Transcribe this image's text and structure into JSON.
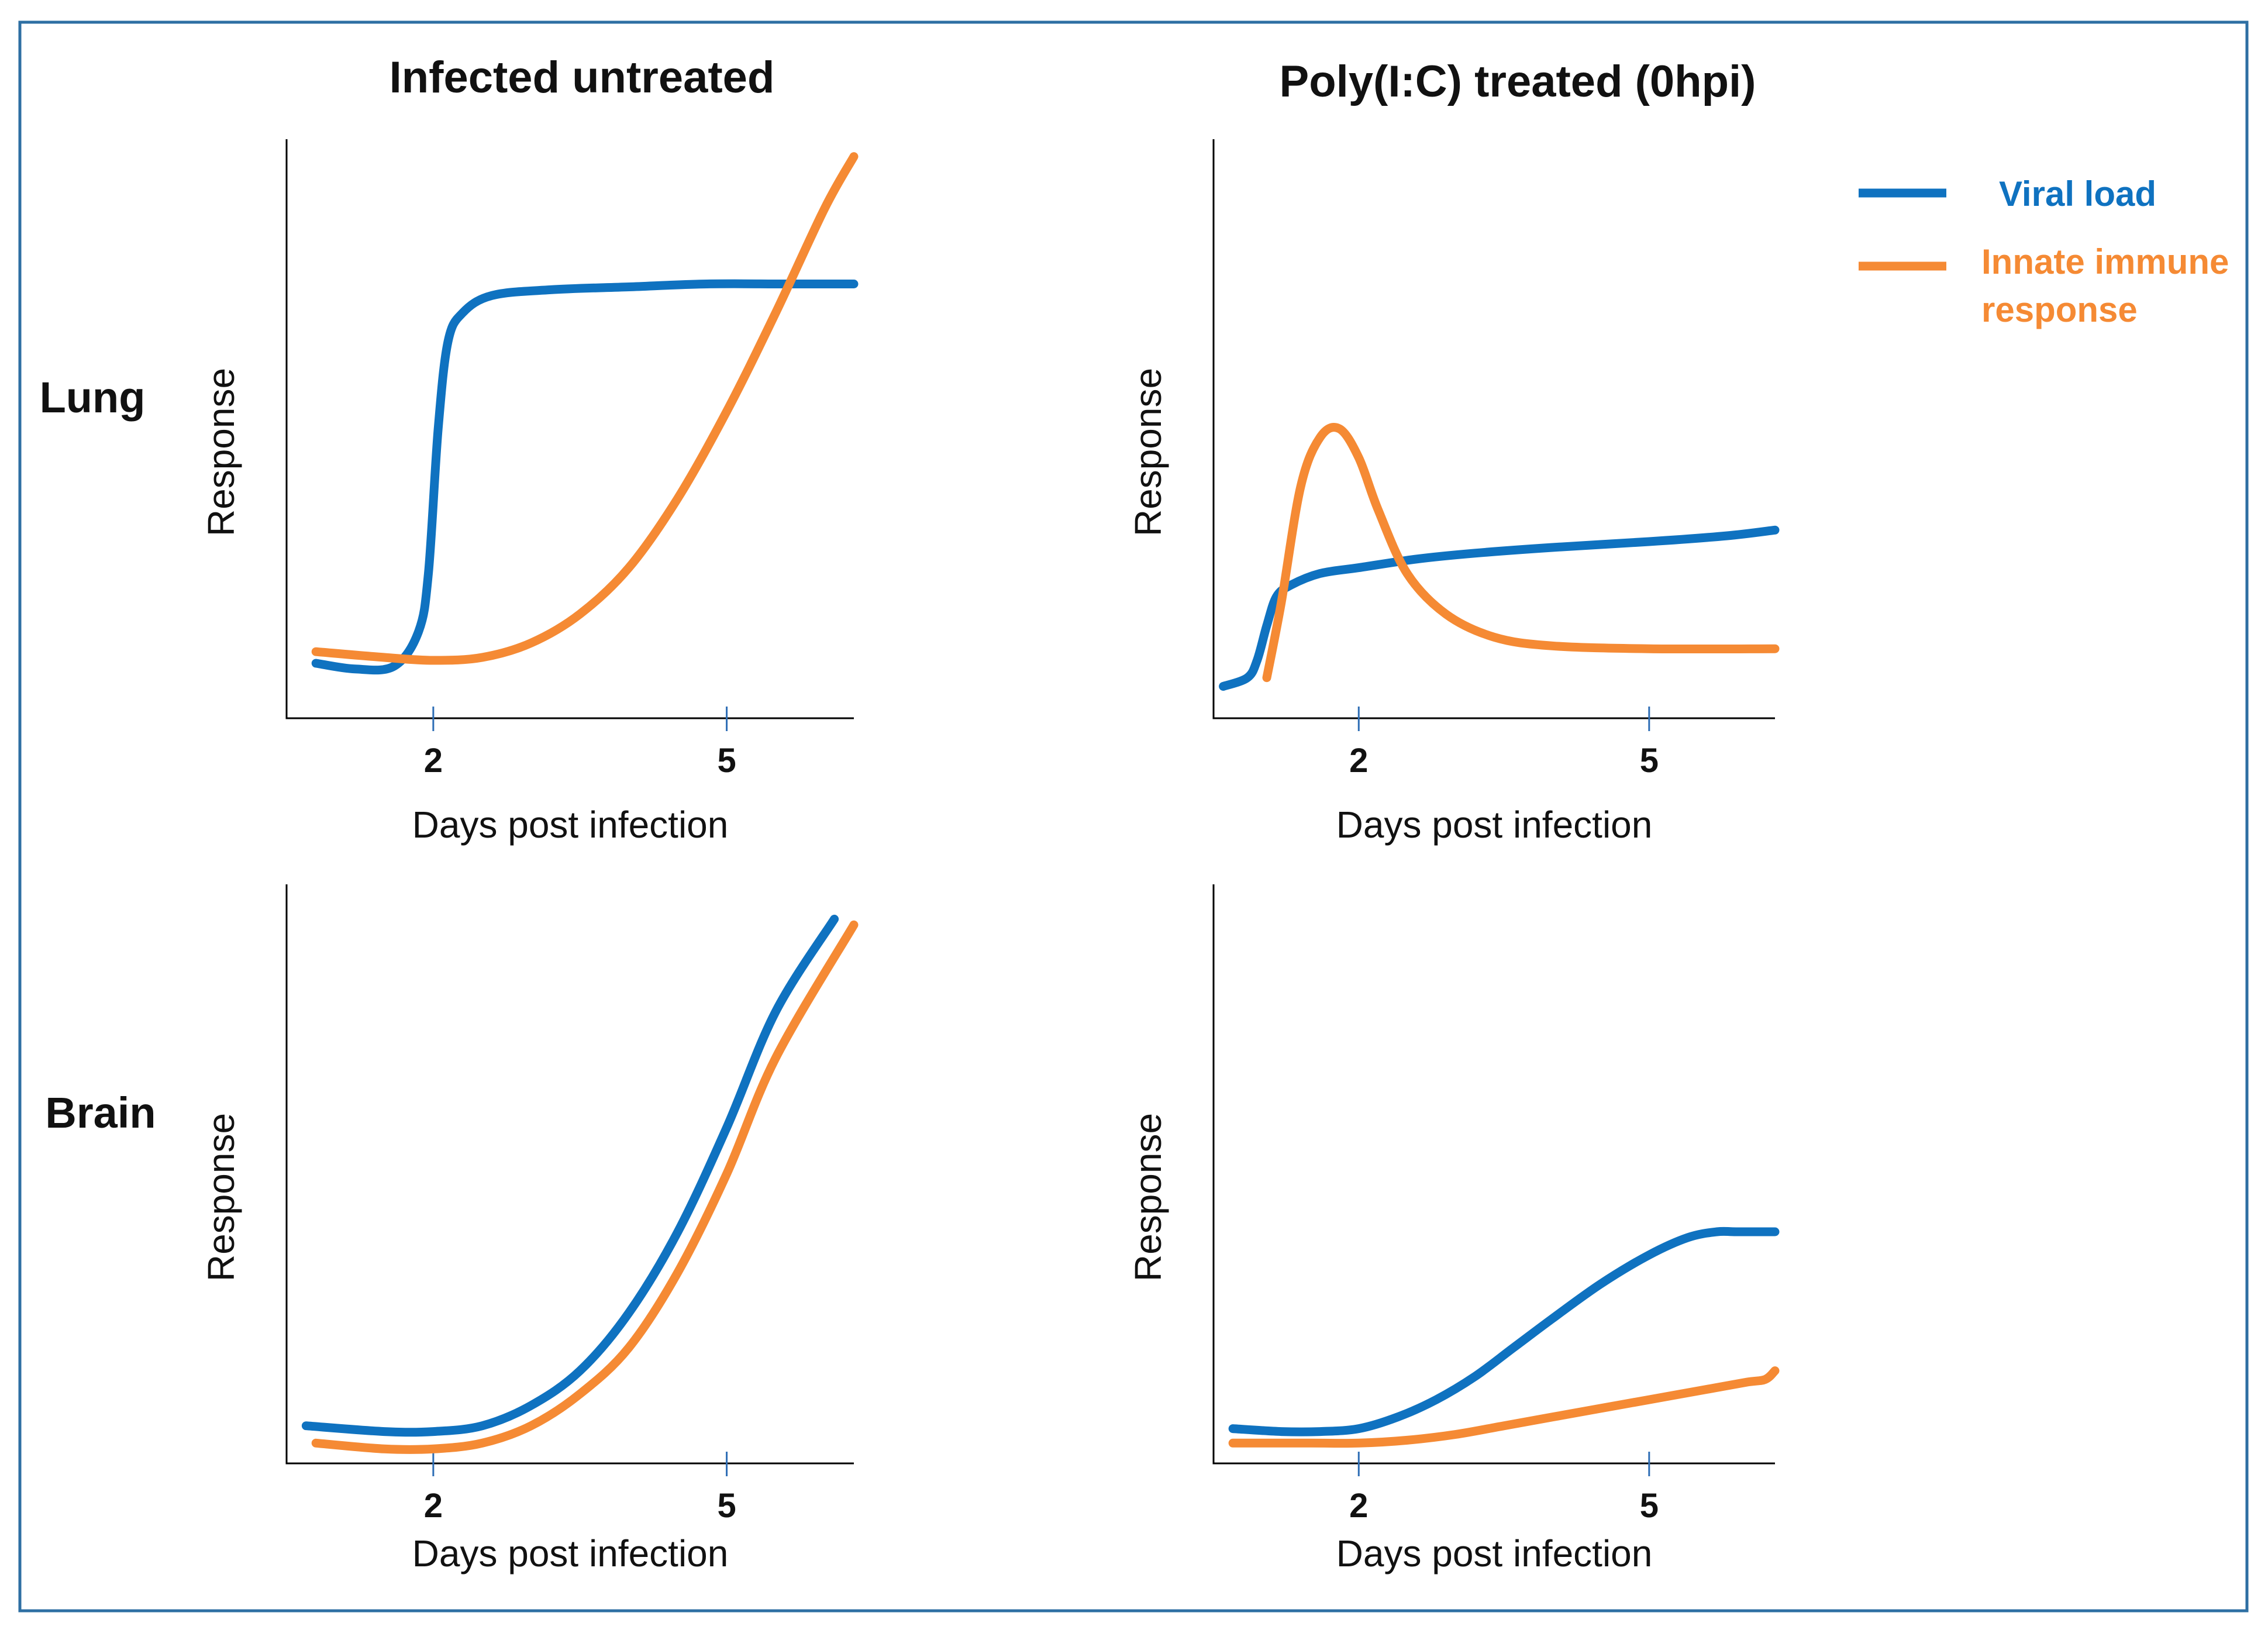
{
  "colors": {
    "viral": "#0f72c0",
    "innate": "#f58a34",
    "frame": "#2e6fa3",
    "tick": "#2d6db5"
  },
  "figure": {
    "col_titles": [
      "Infected untreated",
      "Poly(I:C) treated (0hpi)"
    ],
    "row_labels": [
      "Lung",
      "Brain"
    ]
  },
  "legend": {
    "viral_label": "Viral load",
    "innate_line1": "Innate immune",
    "innate_line2": "response"
  },
  "chart_data": [
    {
      "id": "lung-untreated",
      "type": "line",
      "title": "Infected untreated",
      "xlabel": "Days post infection",
      "ylabel": "Response",
      "xticks": [
        2,
        5
      ],
      "xlim": [
        0.5,
        6.3
      ],
      "ylim": [
        0,
        10
      ],
      "series": [
        {
          "name": "Viral load",
          "key": "viral",
          "x": [
            0.8,
            1.2,
            1.6,
            1.85,
            1.95,
            2.05,
            2.15,
            2.3,
            2.6,
            3.2,
            4.0,
            4.8,
            5.6,
            6.3
          ],
          "y": [
            0.95,
            0.85,
            0.9,
            1.5,
            2.5,
            5.0,
            6.5,
            7.0,
            7.3,
            7.4,
            7.45,
            7.5,
            7.5,
            7.5
          ]
        },
        {
          "name": "Innate immune response",
          "key": "innate",
          "x": [
            0.8,
            1.5,
            2.0,
            2.5,
            3.0,
            3.5,
            4.0,
            4.5,
            5.0,
            5.5,
            6.0,
            6.3
          ],
          "y": [
            1.15,
            1.05,
            1.0,
            1.05,
            1.3,
            1.8,
            2.6,
            3.8,
            5.3,
            7.0,
            8.8,
            9.7
          ]
        }
      ]
    },
    {
      "id": "lung-polyic",
      "type": "line",
      "title": "Poly(I:C) treated (0hpi)",
      "xlabel": "Days post infection",
      "ylabel": "Response",
      "xticks": [
        2,
        5
      ],
      "xlim": [
        0.5,
        6.3
      ],
      "ylim": [
        0,
        10
      ],
      "series": [
        {
          "name": "Viral load",
          "key": "viral",
          "x": [
            0.6,
            0.85,
            0.95,
            1.05,
            1.15,
            1.3,
            1.6,
            2.0,
            2.6,
            3.2,
            4.0,
            5.0,
            5.8,
            6.3
          ],
          "y": [
            0.55,
            0.7,
            1.0,
            1.6,
            2.1,
            2.3,
            2.5,
            2.6,
            2.75,
            2.85,
            2.95,
            3.05,
            3.15,
            3.25
          ]
        },
        {
          "name": "Innate immune response",
          "key": "innate",
          "x": [
            1.05,
            1.2,
            1.4,
            1.6,
            1.8,
            2.0,
            2.2,
            2.5,
            2.9,
            3.4,
            4.0,
            5.0,
            6.3
          ],
          "y": [
            0.7,
            2.0,
            4.0,
            4.85,
            5.0,
            4.5,
            3.6,
            2.5,
            1.8,
            1.4,
            1.25,
            1.2,
            1.2
          ]
        }
      ]
    },
    {
      "id": "brain-untreated",
      "type": "line",
      "title": "",
      "xlabel": "Days post infection",
      "ylabel": "Response",
      "xticks": [
        2,
        5
      ],
      "xlim": [
        0.5,
        6.3
      ],
      "ylim": [
        0,
        10
      ],
      "series": [
        {
          "name": "Viral load",
          "key": "viral",
          "x": [
            0.7,
            1.5,
            2.0,
            2.5,
            3.0,
            3.5,
            4.0,
            4.5,
            5.0,
            5.5,
            6.1
          ],
          "y": [
            0.65,
            0.55,
            0.55,
            0.65,
            1.0,
            1.6,
            2.6,
            4.0,
            5.8,
            7.8,
            9.4
          ]
        },
        {
          "name": "Innate immune response",
          "key": "innate",
          "x": [
            0.8,
            1.5,
            2.0,
            2.5,
            3.0,
            3.5,
            4.0,
            4.5,
            5.0,
            5.5,
            6.3
          ],
          "y": [
            0.35,
            0.25,
            0.25,
            0.35,
            0.65,
            1.2,
            2.0,
            3.3,
            5.0,
            7.0,
            9.3
          ]
        }
      ]
    },
    {
      "id": "brain-polyic",
      "type": "line",
      "title": "",
      "xlabel": "Days post infection",
      "ylabel": "Response",
      "xticks": [
        2,
        5
      ],
      "xlim": [
        0.5,
        6.3
      ],
      "ylim": [
        0,
        10
      ],
      "series": [
        {
          "name": "Viral load",
          "key": "viral",
          "x": [
            0.7,
            1.2,
            1.6,
            2.0,
            2.4,
            2.8,
            3.2,
            3.6,
            4.0,
            4.5,
            5.0,
            5.4,
            5.7,
            5.9,
            6.3
          ],
          "y": [
            0.6,
            0.55,
            0.55,
            0.6,
            0.8,
            1.1,
            1.5,
            2.0,
            2.5,
            3.1,
            3.6,
            3.9,
            4.0,
            4.0,
            4.0
          ]
        },
        {
          "name": "Innate immune response",
          "key": "innate",
          "x": [
            0.7,
            1.5,
            2.0,
            2.5,
            3.0,
            3.5,
            4.0,
            4.5,
            5.0,
            5.5,
            6.0,
            6.2,
            6.3
          ],
          "y": [
            0.35,
            0.35,
            0.35,
            0.4,
            0.5,
            0.65,
            0.8,
            0.95,
            1.1,
            1.25,
            1.4,
            1.45,
            1.6
          ]
        }
      ]
    }
  ]
}
